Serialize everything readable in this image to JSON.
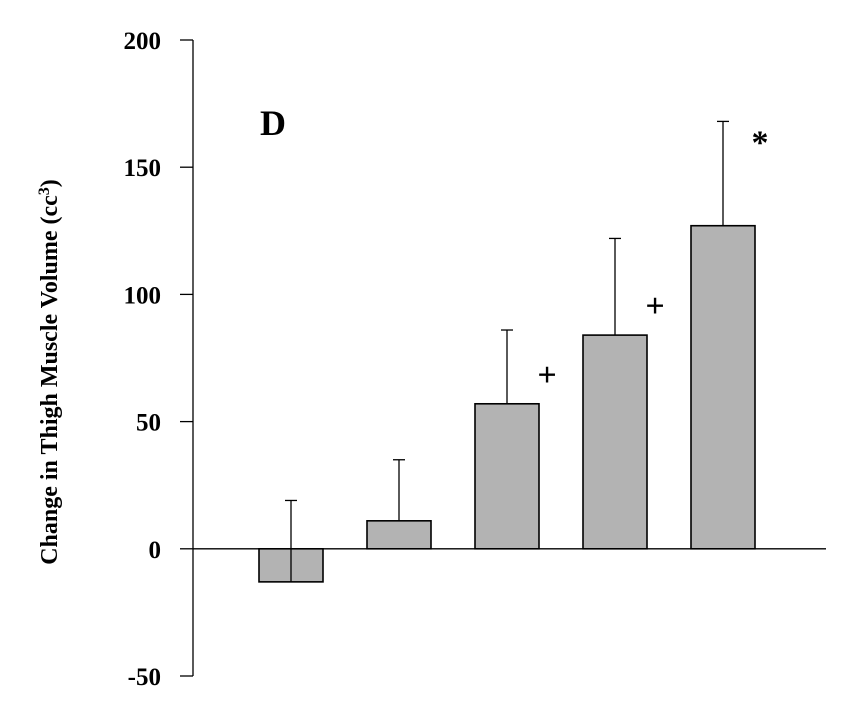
{
  "chart_data": {
    "type": "bar",
    "panel_label": "D",
    "title": "",
    "xlabel": "",
    "ylabel": "Change in Thigh Muscle Volume (cc",
    "ylabel_superscript": "3",
    "ylabel_suffix": ")",
    "ylim": [
      -50,
      200
    ],
    "yticks": [
      200,
      150,
      100,
      50,
      0,
      -50
    ],
    "bar_color": "#b3b3b3",
    "grid": false,
    "legend": "none",
    "bars": [
      {
        "value": -13,
        "error": 32,
        "annotation": ""
      },
      {
        "value": 11,
        "error": 24,
        "annotation": ""
      },
      {
        "value": 57,
        "error": 29,
        "annotation": "+"
      },
      {
        "value": 84,
        "error": 38,
        "annotation": "+"
      },
      {
        "value": 127,
        "error": 41,
        "annotation": "*"
      }
    ]
  }
}
